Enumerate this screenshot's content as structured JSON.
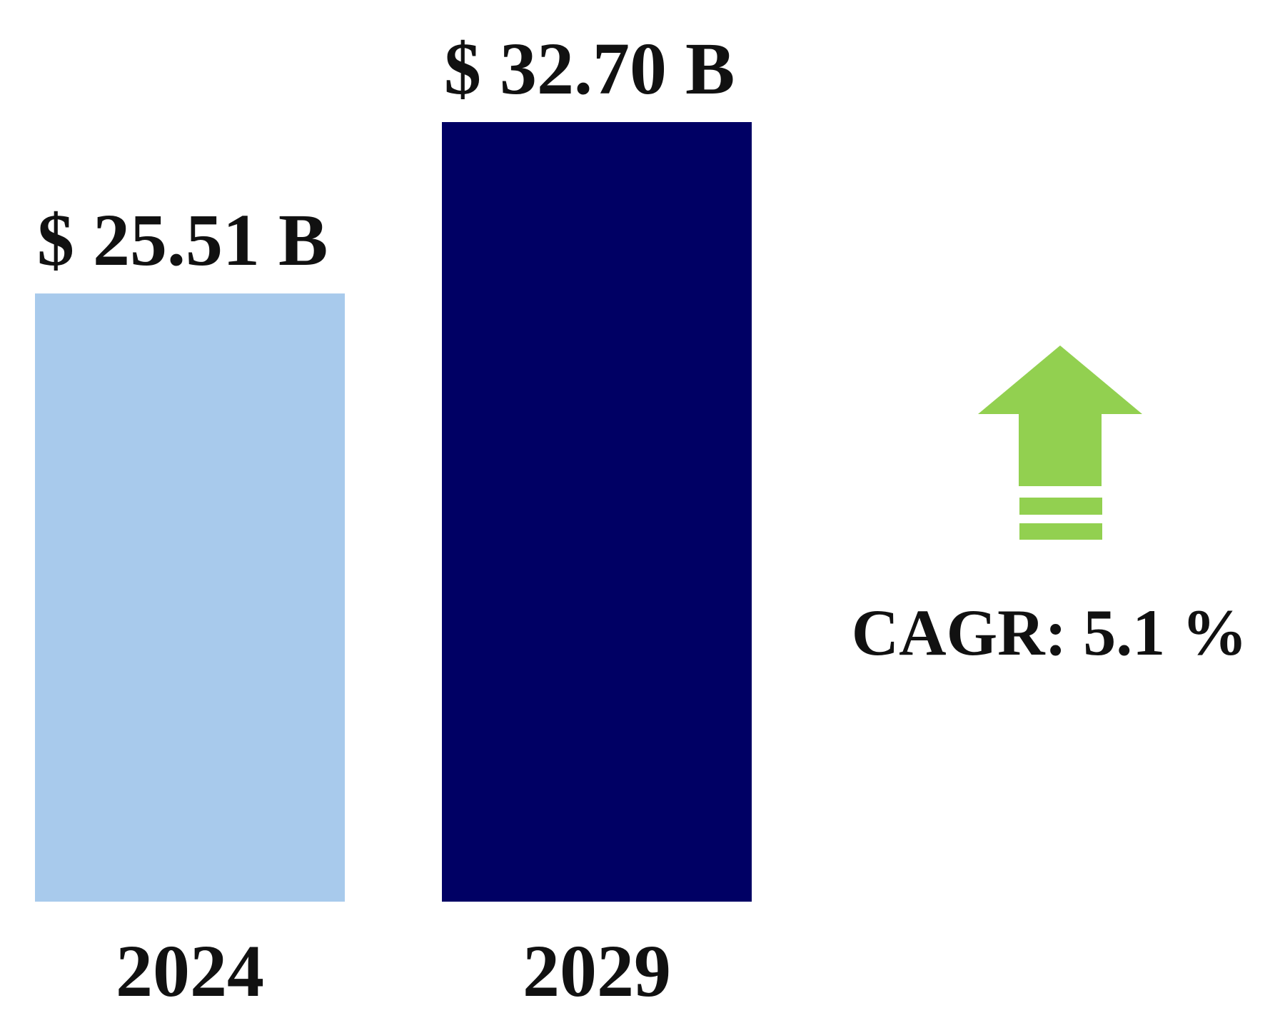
{
  "chart_data": {
    "type": "bar",
    "categories": [
      "2024",
      "2029"
    ],
    "values": [
      25.51,
      32.7
    ],
    "value_labels": [
      "$ 25.51 B",
      "$ 32.70 B"
    ],
    "bar_colors": [
      "#a8caec",
      "#000064"
    ],
    "title": "",
    "xlabel": "",
    "ylabel": "",
    "ylim": [
      0,
      32.7
    ],
    "grid": false,
    "legend": "none"
  },
  "cagr": {
    "label": "CAGR: 5.1 %",
    "icon": "up-arrow-icon",
    "color": "#92d050"
  }
}
